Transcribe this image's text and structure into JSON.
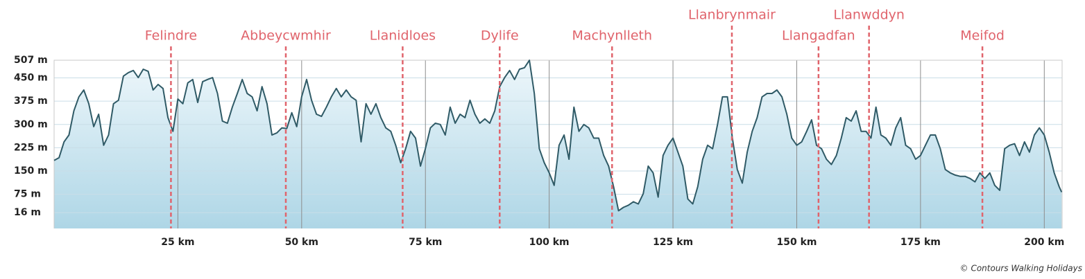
{
  "chart_data": {
    "type": "area",
    "x": [
      0,
      1,
      2,
      3,
      4,
      5,
      6,
      7,
      8,
      9,
      10,
      11,
      12,
      13,
      14,
      15,
      16,
      17,
      18,
      19,
      20,
      21,
      22,
      23,
      24,
      25,
      26,
      27,
      28,
      29,
      30,
      31,
      32,
      33,
      34,
      35,
      36,
      37,
      38,
      39,
      40,
      41,
      42,
      43,
      44,
      45,
      46,
      47,
      48,
      49,
      50,
      51,
      52,
      53,
      54,
      55,
      56,
      57,
      58,
      59,
      60,
      61,
      62,
      63,
      64,
      65,
      66,
      67,
      68,
      69,
      70,
      71,
      72,
      73,
      74,
      75,
      76,
      77,
      78,
      79,
      80,
      81,
      82,
      83,
      84,
      85,
      86,
      87,
      88,
      89,
      90,
      91,
      92,
      93,
      94,
      95,
      96,
      97,
      98,
      99,
      100,
      101,
      102,
      103,
      104,
      105,
      106,
      107,
      108,
      109,
      110,
      111,
      112,
      113,
      114,
      115,
      116,
      117,
      118,
      119,
      120,
      121,
      122,
      123,
      124,
      125,
      126,
      127,
      128,
      129,
      130,
      131,
      132,
      133,
      134,
      135,
      136,
      137,
      138,
      139,
      140,
      141,
      142,
      143,
      144,
      145,
      146,
      147,
      148,
      149,
      150,
      151,
      152,
      153,
      154,
      155,
      156,
      157,
      158,
      159,
      160,
      161,
      162,
      163,
      164,
      165,
      166,
      167,
      168,
      169,
      170,
      171,
      172,
      173,
      174,
      175,
      176,
      177,
      178,
      179,
      180,
      181,
      182,
      183,
      184,
      185,
      186,
      187,
      188,
      189,
      190,
      191,
      192,
      193,
      194,
      195,
      196,
      197,
      198,
      199,
      200,
      201,
      202,
      203,
      203.5
    ],
    "series": [
      {
        "color": "#2f5a66",
        "values": [
          184,
          193,
          244,
          266,
          344,
          389,
          411,
          367,
          293,
          333,
          233,
          266,
          367,
          378,
          456,
          467,
          474,
          451,
          478,
          471,
          411,
          429,
          416,
          322,
          278,
          382,
          367,
          434,
          445,
          371,
          438,
          445,
          451,
          400,
          311,
          304,
          356,
          400,
          445,
          400,
          389,
          344,
          422,
          367,
          266,
          273,
          289,
          287,
          338,
          293,
          389,
          445,
          378,
          333,
          326,
          356,
          389,
          416,
          389,
          411,
          389,
          378,
          244,
          367,
          333,
          367,
          322,
          289,
          278,
          233,
          177,
          222,
          278,
          256,
          166,
          222,
          289,
          304,
          300,
          266,
          356,
          304,
          333,
          322,
          378,
          333,
          304,
          318,
          304,
          344,
          422,
          451,
          474,
          445,
          478,
          483,
          507,
          400,
          222,
          177,
          144,
          104,
          233,
          266,
          188,
          356,
          278,
          300,
          289,
          256,
          256,
          200,
          166,
          100,
          22,
          33,
          40,
          51,
          44,
          77,
          166,
          144,
          66,
          200,
          233,
          256,
          211,
          166,
          60,
          44,
          100,
          188,
          233,
          222,
          300,
          389,
          389,
          256,
          155,
          111,
          211,
          278,
          322,
          389,
          400,
          400,
          411,
          389,
          333,
          256,
          233,
          244,
          278,
          315,
          233,
          222,
          188,
          171,
          200,
          256,
          322,
          311,
          344,
          278,
          278,
          256,
          356,
          266,
          256,
          233,
          289,
          322,
          233,
          222,
          188,
          200,
          233,
          266,
          266,
          222,
          155,
          144,
          137,
          133,
          133,
          126,
          115,
          144,
          126,
          144,
          104,
          88,
          222,
          233,
          238,
          200,
          244,
          211,
          266,
          289,
          266,
          211,
          144,
          100,
          82
        ]
      }
    ],
    "xlim": [
      0,
      203.6
    ],
    "ylim": [
      -35,
      507
    ],
    "xticks": [
      {
        "value": 25,
        "label": "25 km"
      },
      {
        "value": 50,
        "label": "50 km"
      },
      {
        "value": 75,
        "label": "75 km"
      },
      {
        "value": 100,
        "label": "100 km"
      },
      {
        "value": 125,
        "label": "125 km"
      },
      {
        "value": 150,
        "label": "150 km"
      },
      {
        "value": 175,
        "label": "175 km"
      },
      {
        "value": 200,
        "label": "200 km"
      }
    ],
    "yticks": [
      {
        "value": 16,
        "label": "16 m"
      },
      {
        "value": 75,
        "label": "75 m"
      },
      {
        "value": 150,
        "label": "150 m"
      },
      {
        "value": 225,
        "label": "225 m"
      },
      {
        "value": 300,
        "label": "300 m"
      },
      {
        "value": 375,
        "label": "375 m"
      },
      {
        "value": 450,
        "label": "450 m"
      },
      {
        "value": 507,
        "label": "507 m"
      }
    ],
    "markers": [
      {
        "label": "Felindre",
        "x": 23.6
      },
      {
        "label": "Abbeycwmhir",
        "x": 46.8
      },
      {
        "label": "Llanidloes",
        "x": 70.4
      },
      {
        "label": "Dylife",
        "x": 90
      },
      {
        "label": "Machynlleth",
        "x": 112.7
      },
      {
        "label": "Llanbrynmair",
        "x": 136.9
      },
      {
        "label": "Llangadfan",
        "x": 154.4
      },
      {
        "label": "Llanwddyn",
        "x": 164.6
      },
      {
        "label": "Meifod",
        "x": 187.5
      }
    ],
    "marker_color": "#e0646c",
    "credit": "© Contours Walking Holidays"
  }
}
